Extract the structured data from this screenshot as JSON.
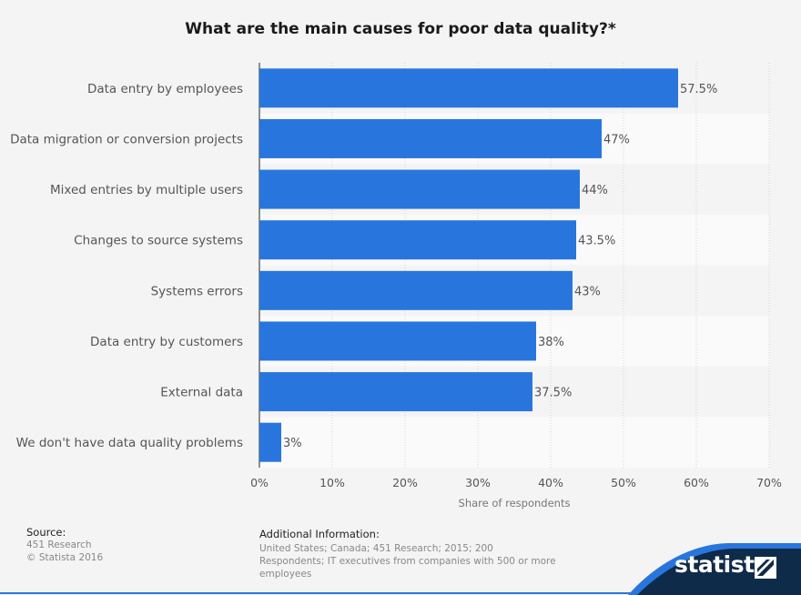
{
  "chart_data": {
    "type": "bar",
    "orientation": "horizontal",
    "title": "What are the main causes for poor data quality?*",
    "categories": [
      "Data entry by employees",
      "Data migration or conversion projects",
      "Mixed entries by multiple users",
      "Changes to source systems",
      "Systems errors",
      "Data entry by customers",
      "External data",
      "We don't have data quality problems"
    ],
    "values": [
      57.5,
      47,
      44,
      43.5,
      43,
      38,
      37.5,
      3
    ],
    "value_labels": [
      "57.5%",
      "47%",
      "44%",
      "43.5%",
      "43%",
      "38%",
      "37.5%",
      "3%"
    ],
    "xlabel": "Share of respondents",
    "ylabel": "",
    "xlim": [
      0,
      70
    ],
    "ticks": [
      0,
      10,
      20,
      30,
      40,
      50,
      60,
      70
    ],
    "tick_labels": [
      "0%",
      "10%",
      "20%",
      "30%",
      "40%",
      "50%",
      "60%",
      "70%"
    ],
    "grid": true,
    "legend": "none"
  },
  "colors": {
    "bar": "#2876dd",
    "background": "#f4f4f4",
    "row_alt": "#fafafa",
    "brand_band": "#0f2b4a",
    "brand_accent": "#2876dd"
  },
  "footer": {
    "source_heading": "Source:",
    "source_lines": [
      "451 Research",
      "© Statista 2016"
    ],
    "info_heading": "Additional Information:",
    "info_text": "United States; Canada; 451 Research; 2015; 200 Respondents; IT executives from companies with 500 or more employees"
  },
  "brand": {
    "name": "statista",
    "icon": "statista-logo-icon"
  }
}
